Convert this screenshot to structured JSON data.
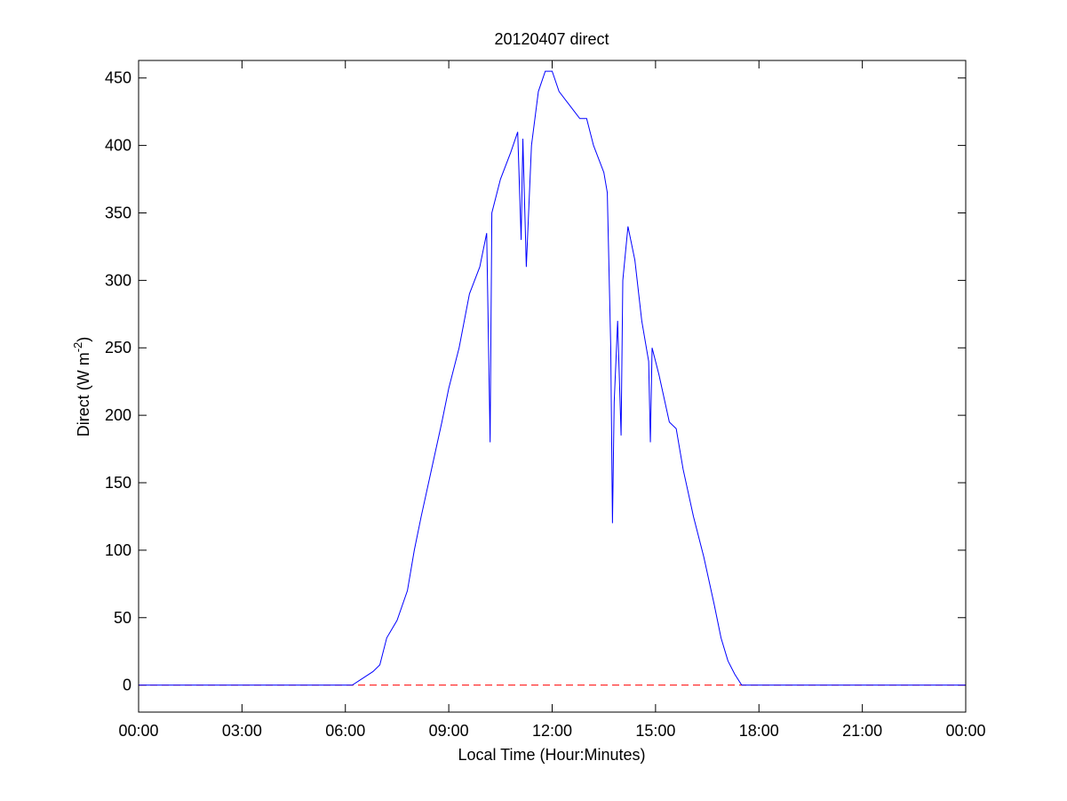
{
  "chart_data": {
    "type": "line",
    "title": "20120407 direct",
    "xlabel": "Local Time (Hour:Minutes)",
    "ylabel": {
      "main": "Direct (W m",
      "sup": "-2",
      "end": ")"
    },
    "x": [
      0,
      6.0,
      6.2,
      6.5,
      6.8,
      7.0,
      7.2,
      7.5,
      7.8,
      8.0,
      8.2,
      8.5,
      8.8,
      9.0,
      9.3,
      9.6,
      9.9,
      10.1,
      10.2,
      10.25,
      10.5,
      10.8,
      11.0,
      11.1,
      11.15,
      11.25,
      11.4,
      11.6,
      11.8,
      12.0,
      12.2,
      12.5,
      12.8,
      13.0,
      13.2,
      13.5,
      13.6,
      13.7,
      13.75,
      13.8,
      13.9,
      14.0,
      14.05,
      14.2,
      14.4,
      14.6,
      14.8,
      14.85,
      14.9,
      15.1,
      15.4,
      15.6,
      15.8,
      16.1,
      16.4,
      16.7,
      16.9,
      17.1,
      17.3,
      17.5,
      24
    ],
    "series": [
      {
        "name": "direct",
        "color": "#0000ff",
        "values": [
          0,
          0,
          0,
          5,
          10,
          15,
          35,
          48,
          70,
          100,
          125,
          160,
          195,
          220,
          250,
          290,
          310,
          335,
          180,
          350,
          375,
          395,
          410,
          330,
          405,
          310,
          400,
          440,
          455,
          455,
          440,
          430,
          420,
          420,
          400,
          380,
          365,
          250,
          120,
          210,
          270,
          185,
          300,
          340,
          315,
          270,
          240,
          180,
          250,
          230,
          195,
          190,
          160,
          125,
          95,
          60,
          35,
          18,
          8,
          0,
          0
        ]
      }
    ],
    "reference_line": {
      "value": 0,
      "color": "#ff0000"
    },
    "xlim": [
      0,
      24
    ],
    "xticks": [
      {
        "value": 0,
        "label": "00:00"
      },
      {
        "value": 3,
        "label": "03:00"
      },
      {
        "value": 6,
        "label": "06:00"
      },
      {
        "value": 9,
        "label": "09:00"
      },
      {
        "value": 12,
        "label": "12:00"
      },
      {
        "value": 15,
        "label": "15:00"
      },
      {
        "value": 18,
        "label": "18:00"
      },
      {
        "value": 21,
        "label": "21:00"
      },
      {
        "value": 24,
        "label": "00:00"
      }
    ],
    "ylim": [
      -20,
      463
    ],
    "yticks": [
      0,
      50,
      100,
      150,
      200,
      250,
      300,
      350,
      400,
      450
    ],
    "grid": false
  }
}
